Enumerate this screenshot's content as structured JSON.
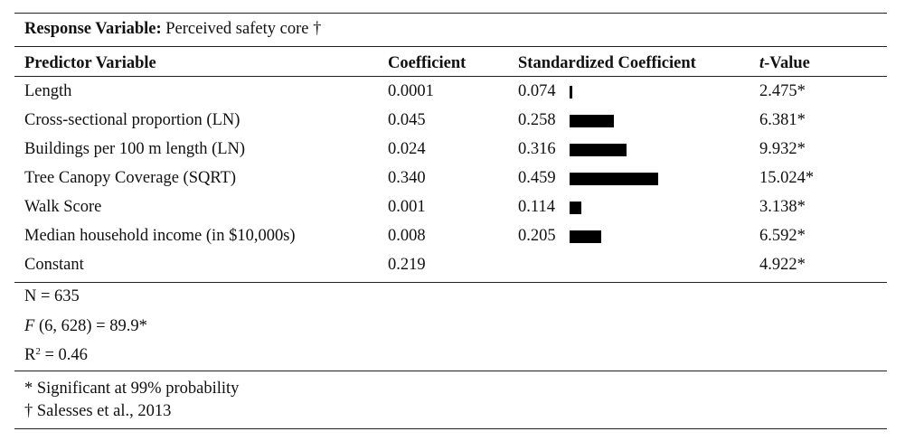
{
  "response": {
    "label": "Response Variable:",
    "value": "Perceived safety core †"
  },
  "headers": {
    "predictor": "Predictor Variable",
    "coefficient": "Coefficient",
    "standardized": "Standardized Coefficient",
    "t_prefix": "t",
    "t_suffix": "-Value"
  },
  "rows": [
    {
      "predictor": "Length",
      "coefficient": "0.0001",
      "standardized": "0.074",
      "std_value": 0.074,
      "t": "2.475*"
    },
    {
      "predictor": "Cross-sectional proportion (LN)",
      "coefficient": "0.045",
      "standardized": "0.258",
      "std_value": 0.258,
      "t": "6.381*"
    },
    {
      "predictor": "Buildings per 100 m length (LN)",
      "coefficient": "0.024",
      "standardized": "0.316",
      "std_value": 0.316,
      "t": "9.932*"
    },
    {
      "predictor": "Tree Canopy Coverage (SQRT)",
      "coefficient": "0.340",
      "standardized": "0.459",
      "std_value": 0.459,
      "t": "15.024*"
    },
    {
      "predictor": "Walk Score",
      "coefficient": "0.001",
      "standardized": "0.114",
      "std_value": 0.114,
      "t": "3.138*"
    },
    {
      "predictor": "Median household income (in $10,000s)",
      "coefficient": "0.008",
      "standardized": "0.205",
      "std_value": 0.205,
      "t": "6.592*"
    },
    {
      "predictor": "Constant",
      "coefficient": "0.219",
      "standardized": "",
      "std_value": null,
      "t": "4.922*"
    }
  ],
  "stats": {
    "n": "N = 635",
    "f_letter": "F",
    "f_rest": " (6, 628) = 89.9*",
    "r_letter": "R",
    "r_sup": "2",
    "r_rest": " = 0.46"
  },
  "notes": {
    "significance": "* Significant at 99% probability",
    "source": "† Salesses et al., 2013"
  }
}
